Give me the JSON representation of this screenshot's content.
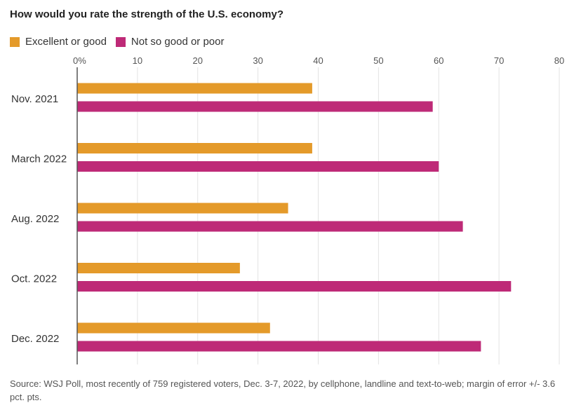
{
  "chart_data": {
    "type": "bar",
    "orientation": "horizontal",
    "title": "How would you rate the strength of the U.S. economy?",
    "categories": [
      "Nov. 2021",
      "March 2022",
      "Aug. 2022",
      "Oct. 2022",
      "Dec. 2022"
    ],
    "series": [
      {
        "name": "Excellent or good",
        "color": "#e49a2a",
        "values": [
          39,
          39,
          35,
          27,
          32
        ]
      },
      {
        "name": "Not so good or poor",
        "color": "#be2a77",
        "values": [
          59,
          60,
          64,
          72,
          67
        ]
      }
    ],
    "xlim": [
      0,
      80
    ],
    "ticks": [
      0,
      10,
      20,
      30,
      40,
      50,
      60,
      70,
      80
    ],
    "tick_labels": [
      "0%",
      "10",
      "20",
      "30",
      "40",
      "50",
      "60",
      "70",
      "80"
    ],
    "grid": true,
    "legend_position": "top-left",
    "xlabel": "",
    "ylabel": ""
  },
  "source": "Source: WSJ Poll, most recently of 759 registered voters, Dec. 3-7, 2022, by cellphone, landline and text-to-web; margin of error +/- 3.6 pct. pts."
}
